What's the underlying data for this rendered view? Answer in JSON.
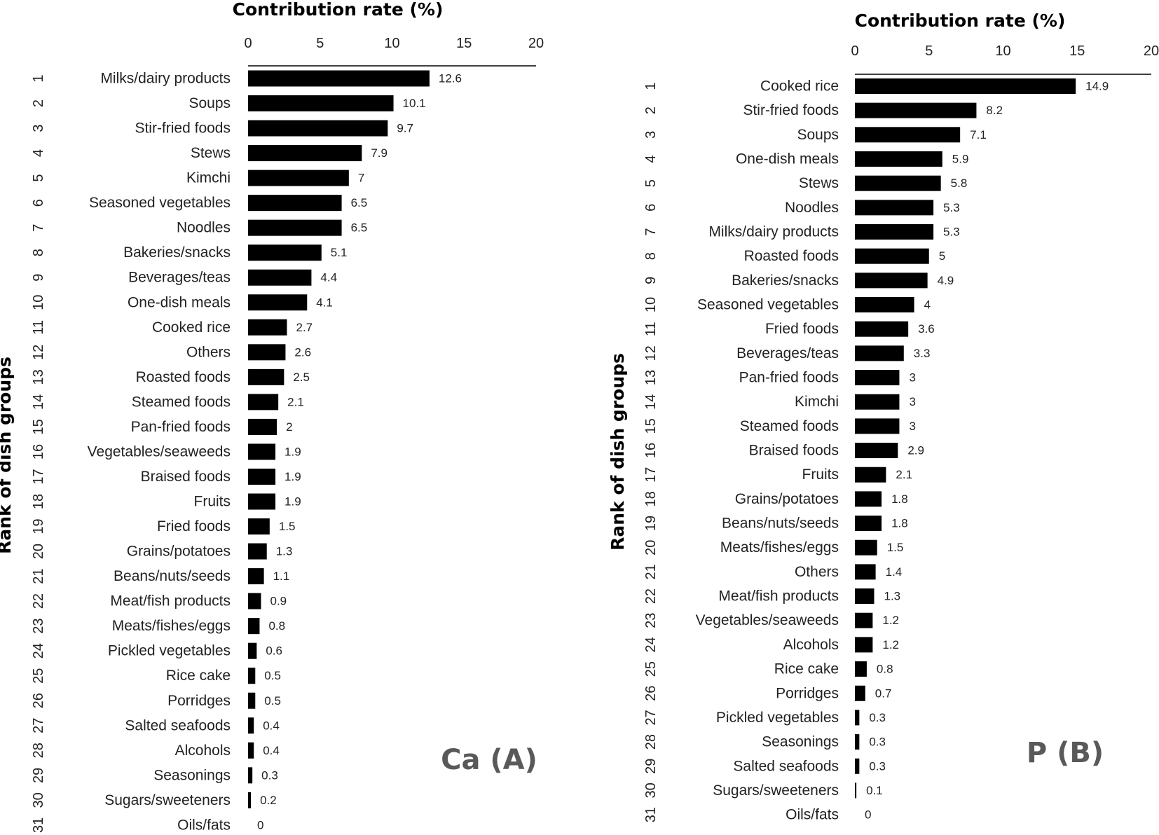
{
  "chart_data": [
    {
      "type": "bar",
      "orientation": "horizontal",
      "panel_label": "Ca (A)",
      "title": "Contribution rate (%)",
      "xlabel": "Contribution rate (%)",
      "ylabel": "Rank of dish  groups",
      "xlim": [
        0,
        20
      ],
      "xticks": [
        "0",
        "5",
        "10",
        "15",
        "20"
      ],
      "ranks": [
        "1",
        "2",
        "3",
        "4",
        "5",
        "6",
        "7",
        "8",
        "9",
        "10",
        "11",
        "12",
        "13",
        "14",
        "15",
        "16",
        "17",
        "18",
        "19",
        "20",
        "21",
        "22",
        "23",
        "24",
        "25",
        "26",
        "27",
        "28",
        "29",
        "30",
        "31"
      ],
      "categories": [
        "Milks/dairy products",
        "Soups",
        "Stir-fried foods",
        "Stews",
        "Kimchi",
        "Seasoned vegetables",
        "Noodles",
        "Bakeries/snacks",
        "Beverages/teas",
        "One-dish meals",
        "Cooked rice",
        "Others",
        "Roasted foods",
        "Steamed foods",
        "Pan-fried foods",
        "Vegetables/seaweeds",
        "Braised foods",
        "Fruits",
        "Fried foods",
        "Grains/potatoes",
        "Beans/nuts/seeds",
        "Meat/fish products",
        "Meats/fishes/eggs",
        "Pickled vegetables",
        "Rice cake",
        "Porridges",
        "Salted seafoods",
        "Alcohols",
        "Seasonings",
        "Sugars/sweeteners",
        "Oils/fats"
      ],
      "values": [
        12.6,
        10.1,
        9.7,
        7.9,
        7,
        6.5,
        6.5,
        5.1,
        4.4,
        4.1,
        2.7,
        2.6,
        2.5,
        2.1,
        2,
        1.9,
        1.9,
        1.9,
        1.5,
        1.3,
        1.1,
        0.9,
        0.8,
        0.6,
        0.5,
        0.5,
        0.4,
        0.4,
        0.3,
        0.2,
        0
      ],
      "labels": [
        "12.6",
        "10.1",
        "9.7",
        "7.9",
        "7",
        "6.5",
        "6.5",
        "5.1",
        "4.4",
        "4.1",
        "2.7",
        "2.6",
        "2.5",
        "2.1",
        "2",
        "1.9",
        "1.9",
        "1.9",
        "1.5",
        "1.3",
        "1.1",
        "0.9",
        "0.8",
        "0.6",
        "0.5",
        "0.5",
        "0.4",
        "0.4",
        "0.3",
        "0.2",
        "0"
      ],
      "bar_color": "#000000"
    },
    {
      "type": "bar",
      "orientation": "horizontal",
      "panel_label": "P (B)",
      "title": "Contribution rate (%)",
      "xlabel": "Contribution rate (%)",
      "ylabel": "Rank of dish groups",
      "xlim": [
        0,
        20
      ],
      "xticks": [
        "0",
        "5",
        "10",
        "15",
        "20"
      ],
      "ranks": [
        "1",
        "2",
        "3",
        "4",
        "5",
        "6",
        "7",
        "8",
        "9",
        "10",
        "11",
        "12",
        "13",
        "14",
        "15",
        "16",
        "17",
        "18",
        "19",
        "20",
        "21",
        "22",
        "23",
        "24",
        "25",
        "26",
        "27",
        "28",
        "29",
        "30",
        "31"
      ],
      "categories": [
        "Cooked rice",
        "Stir-fried foods",
        "Soups",
        "One-dish meals",
        "Stews",
        "Noodles",
        "Milks/dairy products",
        "Roasted foods",
        "Bakeries/snacks",
        "Seasoned vegetables",
        "Fried foods",
        "Beverages/teas",
        "Pan-fried foods",
        "Kimchi",
        "Steamed foods",
        "Braised foods",
        "Fruits",
        "Grains/potatoes",
        "Beans/nuts/seeds",
        "Meats/fishes/eggs",
        "Others",
        "Meat/fish products",
        "Vegetables/seaweeds",
        "Alcohols",
        "Rice cake",
        "Porridges",
        "Pickled vegetables",
        "Seasonings",
        "Salted seafoods",
        "Sugars/sweeteners",
        "Oils/fats"
      ],
      "values": [
        14.9,
        8.2,
        7.1,
        5.9,
        5.8,
        5.3,
        5.3,
        5,
        4.9,
        4,
        3.6,
        3.3,
        3,
        3,
        3,
        2.9,
        2.1,
        1.8,
        1.8,
        1.5,
        1.4,
        1.3,
        1.2,
        1.2,
        0.8,
        0.7,
        0.3,
        0.3,
        0.3,
        0.1,
        0
      ],
      "labels": [
        "14.9",
        "8.2",
        "7.1",
        "5.9",
        "5.8",
        "5.3",
        "5.3",
        "5",
        "4.9",
        "4",
        "3.6",
        "3.3",
        "3",
        "3",
        "3",
        "2.9",
        "2.1",
        "1.8",
        "1.8",
        "1.5",
        "1.4",
        "1.3",
        "1.2",
        "1.2",
        "0.8",
        "0.7",
        "0.3",
        "0.3",
        "0.3",
        "0.1",
        "0"
      ],
      "bar_color": "#000000"
    }
  ]
}
